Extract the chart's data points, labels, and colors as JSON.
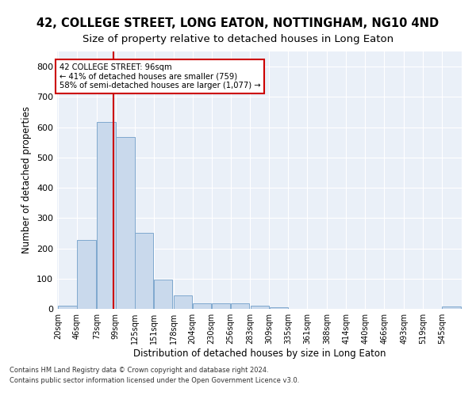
{
  "title": "42, COLLEGE STREET, LONG EATON, NOTTINGHAM, NG10 4ND",
  "subtitle": "Size of property relative to detached houses in Long Eaton",
  "xlabel": "Distribution of detached houses by size in Long Eaton",
  "ylabel": "Number of detached properties",
  "footnote1": "Contains HM Land Registry data © Crown copyright and database right 2024.",
  "footnote2": "Contains public sector information licensed under the Open Government Licence v3.0.",
  "bar_edges": [
    20,
    46,
    73,
    99,
    125,
    151,
    178,
    204,
    230,
    256,
    283,
    309,
    335,
    361,
    388,
    414,
    440,
    466,
    493,
    519,
    545
  ],
  "bar_heights": [
    10,
    228,
    618,
    567,
    252,
    96,
    44,
    19,
    19,
    19,
    10,
    5,
    0,
    0,
    0,
    0,
    0,
    0,
    0,
    0,
    8
  ],
  "bar_color": "#c9d9ec",
  "bar_edgecolor": "#7fa8ce",
  "background_color": "#eaf0f8",
  "grid_color": "#ffffff",
  "vline_x": 96,
  "vline_color": "#cc0000",
  "annotation_line1": "42 COLLEGE STREET: 96sqm",
  "annotation_line2": "← 41% of detached houses are smaller (759)",
  "annotation_line3": "58% of semi-detached houses are larger (1,077) →",
  "annotation_box_color": "#cc0000",
  "ylim": [
    0,
    850
  ],
  "yticks": [
    0,
    100,
    200,
    300,
    400,
    500,
    600,
    700,
    800
  ],
  "title_fontsize": 10.5,
  "subtitle_fontsize": 9.5,
  "xlabel_fontsize": 8.5,
  "ylabel_fontsize": 8.5,
  "footnote_fontsize": 6.0
}
